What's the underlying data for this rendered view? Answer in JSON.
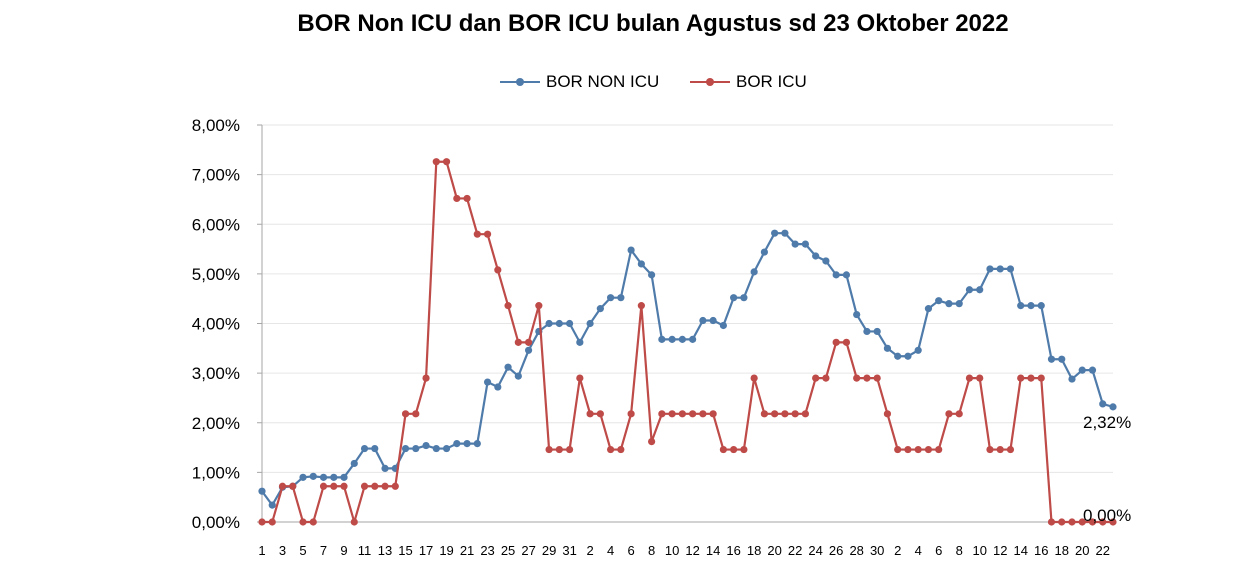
{
  "chart_data": {
    "type": "line",
    "title": "BOR Non ICU dan BOR ICU bulan Agustus sd 23 Oktober 2022",
    "xlabel": "",
    "ylabel": "",
    "ylim": [
      0,
      8
    ],
    "yticks": [
      "0,00%",
      "1,00%",
      "2,00%",
      "3,00%",
      "4,00%",
      "5,00%",
      "6,00%",
      "7,00%",
      "8,00%"
    ],
    "grid": true,
    "legend_position": "top",
    "categories": [
      "1",
      "2",
      "3",
      "4",
      "5",
      "6",
      "7",
      "8",
      "9",
      "10",
      "11",
      "12",
      "13",
      "14",
      "15",
      "16",
      "17",
      "18",
      "19",
      "20",
      "21",
      "22",
      "23",
      "24",
      "25",
      "26",
      "27",
      "28",
      "29",
      "30",
      "31",
      "1",
      "2",
      "3",
      "4",
      "5",
      "6",
      "7",
      "8",
      "9",
      "10",
      "11",
      "12",
      "13",
      "14",
      "15",
      "16",
      "17",
      "18",
      "19",
      "20",
      "21",
      "22",
      "23",
      "24",
      "25",
      "26",
      "27",
      "28",
      "29",
      "30",
      "1",
      "2",
      "3",
      "4",
      "5",
      "6",
      "7",
      "8",
      "9",
      "10",
      "11",
      "12",
      "13",
      "14",
      "15",
      "16",
      "17",
      "18",
      "19",
      "20",
      "21",
      "22",
      "23"
    ],
    "xtick_labels_shown": [
      "1",
      "3",
      "5",
      "7",
      "9",
      "11",
      "13",
      "15",
      "17",
      "19",
      "21",
      "23",
      "25",
      "27",
      "29",
      "31",
      "2",
      "4",
      "6",
      "8",
      "10",
      "12",
      "14",
      "16",
      "18",
      "20",
      "22",
      "24",
      "26",
      "28",
      "30",
      "2",
      "4",
      "6",
      "8",
      "10",
      "12",
      "14",
      "16",
      "18",
      "20",
      "22"
    ],
    "series": [
      {
        "name": "BOR NON ICU",
        "color": "#4F7BAA",
        "values": [
          0.62,
          0.34,
          0.7,
          0.72,
          0.9,
          0.92,
          0.9,
          0.9,
          0.9,
          1.18,
          1.48,
          1.48,
          1.08,
          1.08,
          1.48,
          1.48,
          1.54,
          1.48,
          1.48,
          1.58,
          1.58,
          1.58,
          2.82,
          2.72,
          3.12,
          2.94,
          3.46,
          3.84,
          4.0,
          4.0,
          4.0,
          3.62,
          4.0,
          4.3,
          4.52,
          4.52,
          5.48,
          5.2,
          4.98,
          3.68,
          3.68,
          3.68,
          3.68,
          4.06,
          4.06,
          3.96,
          4.52,
          4.52,
          5.04,
          5.44,
          5.82,
          5.82,
          5.6,
          5.6,
          5.36,
          5.26,
          4.98,
          4.98,
          4.18,
          3.84,
          3.84,
          3.5,
          3.34,
          3.34,
          3.46,
          4.3,
          4.46,
          4.4,
          4.4,
          4.68,
          4.68,
          5.1,
          5.1,
          5.1,
          4.36,
          4.36,
          4.36,
          3.28,
          3.28,
          2.88,
          3.06,
          3.06,
          2.38,
          2.32
        ],
        "end_label": "2,32%"
      },
      {
        "name": "BOR ICU",
        "color": "#BE4B48",
        "values": [
          0.0,
          0.0,
          0.72,
          0.72,
          0.0,
          0.0,
          0.72,
          0.72,
          0.72,
          0.0,
          0.72,
          0.72,
          0.72,
          0.72,
          2.18,
          2.18,
          2.9,
          7.26,
          7.26,
          6.52,
          6.52,
          5.8,
          5.8,
          5.08,
          4.36,
          3.62,
          3.62,
          4.36,
          1.46,
          1.46,
          1.46,
          2.9,
          2.18,
          2.18,
          1.46,
          1.46,
          2.18,
          4.36,
          1.62,
          2.18,
          2.18,
          2.18,
          2.18,
          2.18,
          2.18,
          1.46,
          1.46,
          1.46,
          2.9,
          2.18,
          2.18,
          2.18,
          2.18,
          2.18,
          2.9,
          2.9,
          3.62,
          3.62,
          2.9,
          2.9,
          2.9,
          2.18,
          1.46,
          1.46,
          1.46,
          1.46,
          1.46,
          2.18,
          2.18,
          2.9,
          2.9,
          1.46,
          1.46,
          1.46,
          2.9,
          2.9,
          2.9,
          0.0,
          0.0,
          0.0,
          0.0,
          0.0,
          0.0,
          0.0
        ],
        "end_label": "0,00%"
      }
    ]
  }
}
